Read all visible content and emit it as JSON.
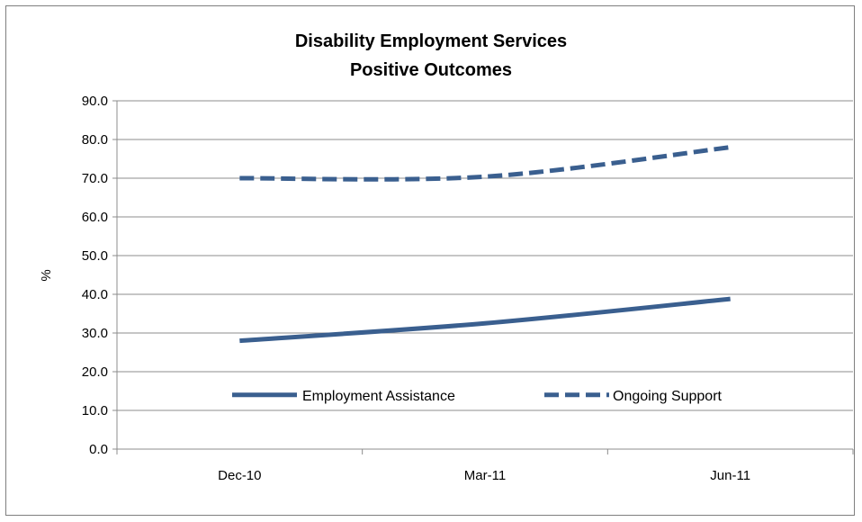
{
  "chart_data": {
    "type": "line",
    "title_lines": [
      "Disability Employment Services",
      "Positive Outcomes"
    ],
    "ylabel": "%",
    "xlabel": "",
    "categories": [
      "Dec-10",
      "Mar-11",
      "Jun-11"
    ],
    "ylim": [
      0,
      90
    ],
    "yticks": [
      "0.0",
      "10.0",
      "20.0",
      "30.0",
      "40.0",
      "50.0",
      "60.0",
      "70.0",
      "80.0",
      "90.0"
    ],
    "grid": true,
    "legend_position": "inside-bottom",
    "series": [
      {
        "name": "Employment Assistance",
        "values": [
          28.0,
          32.5,
          38.8
        ],
        "color": "#3a5f8f",
        "style": "solid"
      },
      {
        "name": "Ongoing Support",
        "values": [
          70.0,
          70.4,
          78.0
        ],
        "color": "#3a5f8f",
        "style": "dashed"
      }
    ]
  }
}
